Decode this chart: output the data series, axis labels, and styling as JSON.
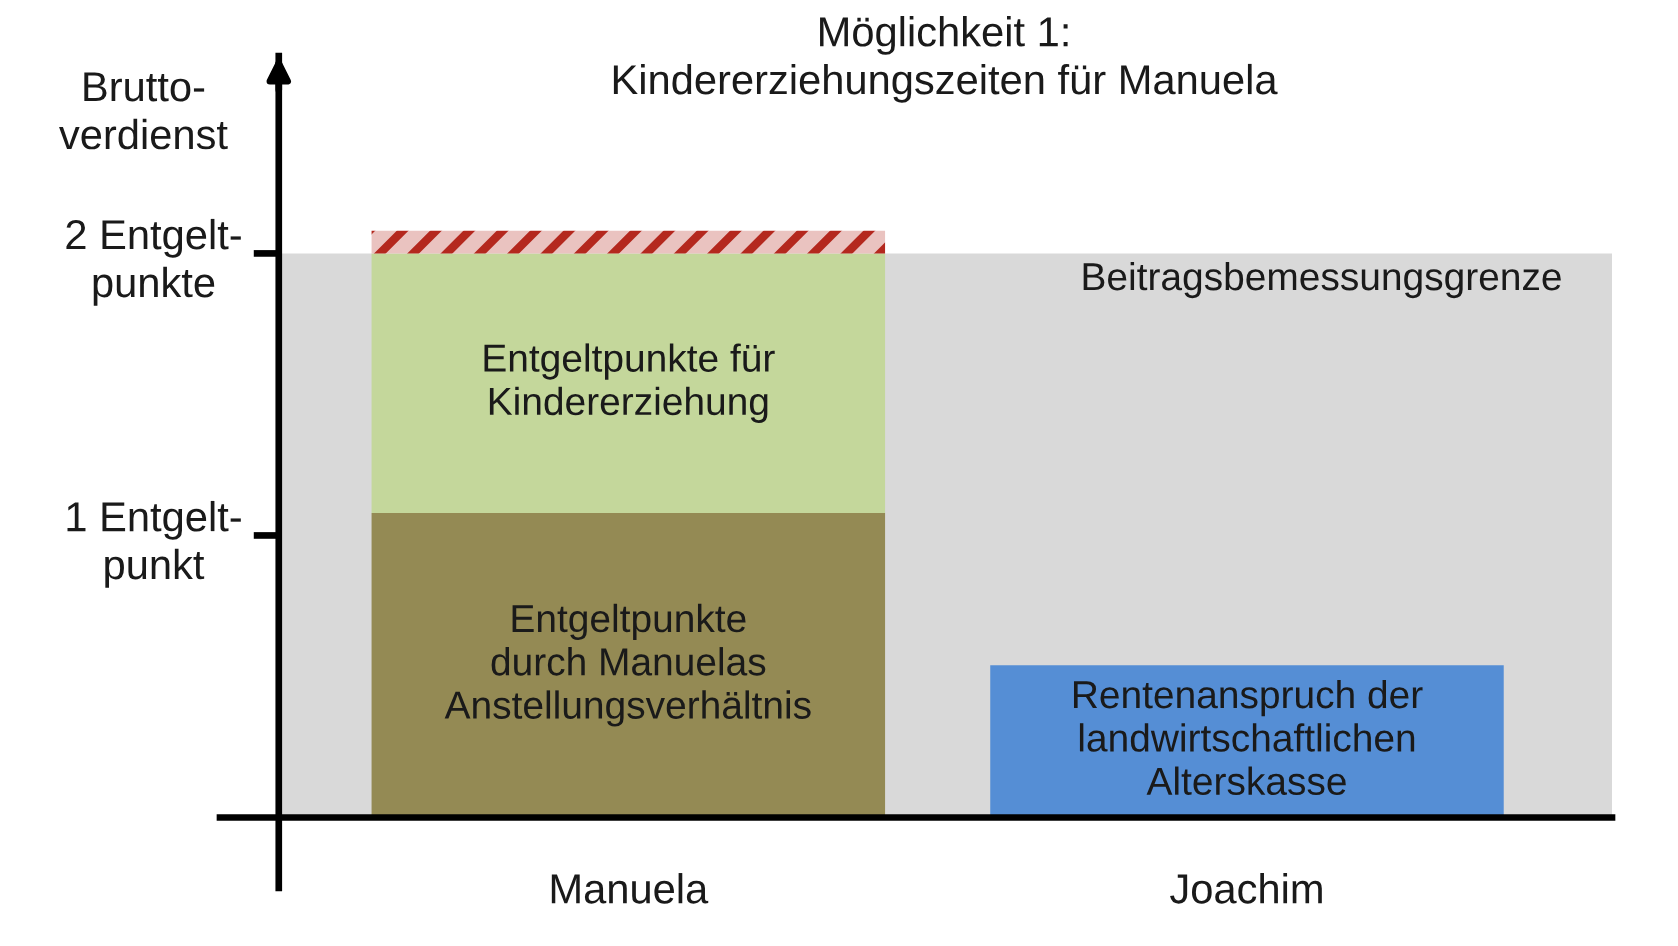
{
  "chart_data": {
    "type": "bar",
    "title": "Möglichkeit 1:\nKindererziehungszeiten für Manuela",
    "ylabel": "Brutto-\nverdienst",
    "categories": [
      "Manuela",
      "Joachim"
    ],
    "stacked": true,
    "series": [
      {
        "name": "Entgeltpunkte\ndurch Manuelas\nAnstellungsverhältnis",
        "color": "#948a54",
        "values": [
          1.08,
          null
        ]
      },
      {
        "name": "Entgeltpunkte für\nKindererziehung",
        "color": "#c4d79b",
        "values": [
          0.92,
          null
        ]
      },
      {
        "color": "#b4281e",
        "values": [
          0.08,
          null
        ]
      },
      {
        "name": "Rentenanspruch der\nlandwirtschaftlichen\nAlterskasse",
        "color": "#558ed5",
        "values": [
          null,
          0.54
        ]
      }
    ],
    "ylim": [
      -0.25,
      2.7
    ],
    "yticks": [
      {
        "value": 1,
        "label": "1 Entgelt-\npunkt"
      },
      {
        "value": 2,
        "label": "2 Entgelt-\npunkte"
      }
    ],
    "bands": [
      {
        "axis": "y",
        "from": 0,
        "to": 2,
        "label": "Beitragsbemessungsgrenze",
        "color": "#d9d9d9"
      }
    ],
    "grid": false,
    "legend": false
  }
}
